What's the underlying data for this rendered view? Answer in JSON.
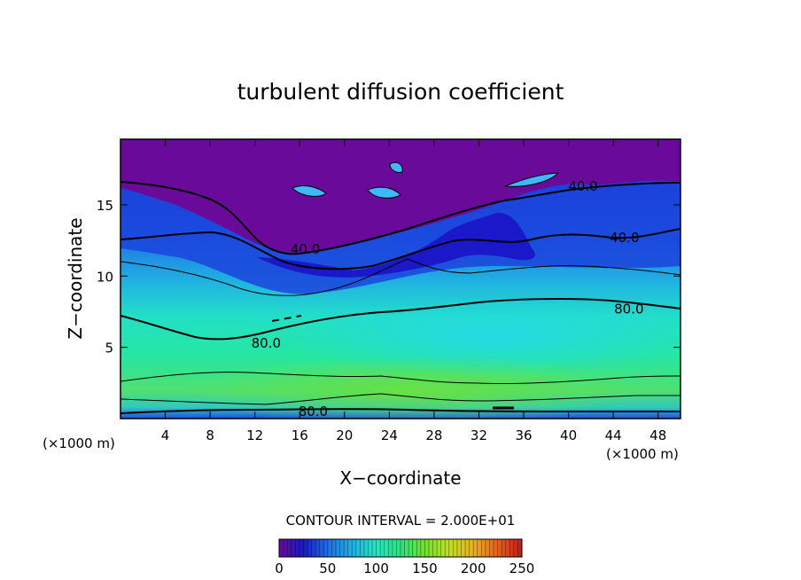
{
  "chart_data": {
    "type": "heatmap",
    "title": "turbulent diffusion coefficient",
    "xlabel": "X−coordinate",
    "ylabel": "Z−coordinate",
    "x_unit_label": "(×1000 m)",
    "z_unit_label": "(×1000 m)",
    "xlim": [
      0,
      50
    ],
    "ylim": [
      0,
      19.6
    ],
    "x_ticks": [
      4,
      8,
      12,
      16,
      20,
      24,
      28,
      32,
      36,
      40,
      44,
      48
    ],
    "y_ticks": [
      5,
      10,
      15
    ],
    "contour_interval_text": "CONTOUR INTERVAL = 2.000E+01",
    "contour_interval": 20,
    "colorbar": {
      "range": [
        0,
        250
      ],
      "tick_values": [
        0,
        50,
        100,
        150,
        200,
        250
      ],
      "tick_labels": [
        "0",
        "50",
        "100",
        "150",
        "200",
        "250"
      ],
      "colors": [
        "#6a0a9a",
        "#1a18c8",
        "#1f6ee8",
        "#20b0e0",
        "#22e6c0",
        "#30e080",
        "#70e030",
        "#c0e020",
        "#e8b020",
        "#e86018",
        "#c81818"
      ]
    },
    "contour_labels": [
      {
        "text": "40.0",
        "x": 41.3,
        "z": 16.3
      },
      {
        "text": "40.0",
        "x": 45.0,
        "z": 12.7
      },
      {
        "text": "40.0",
        "x": 16.5,
        "z": 11.9
      },
      {
        "text": "80.0",
        "x": 45.4,
        "z": 7.7
      },
      {
        "text": "80.0",
        "x": 13.0,
        "z": 5.3
      },
      {
        "text": "80.0",
        "x": 17.2,
        "z": 0.5
      }
    ],
    "grid": false,
    "legend": "colorbar-bottom"
  }
}
